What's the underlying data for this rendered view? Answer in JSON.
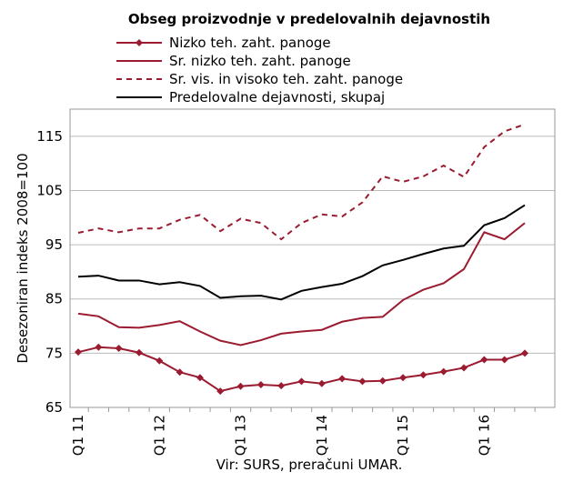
{
  "chart_data": {
    "type": "line",
    "title": "Obseg proizvodnje v predelovalnih dejavnostih",
    "y_label": "Desezoniran indeks  2008=100",
    "source": "Vir: SURS, preračuni UMAR.",
    "categories": [
      "Q1 11",
      null,
      null,
      null,
      "Q1 12",
      null,
      null,
      null,
      "Q1 13",
      null,
      null,
      null,
      "Q1 14",
      null,
      null,
      null,
      "Q1 15",
      null,
      null,
      null,
      "Q1 16",
      null,
      null
    ],
    "series": [
      {
        "name": "Nizko teh. zaht. panoge",
        "color": "#9b1b30",
        "dash": "solid",
        "marker": "diamond",
        "values": [
          75.2,
          76.1,
          75.9,
          75.1,
          73.6,
          71.5,
          70.5,
          68.0,
          68.9,
          69.2,
          69.0,
          69.8,
          69.4,
          70.3,
          69.8,
          69.9,
          70.5,
          71.0,
          71.6,
          72.3,
          73.8,
          73.8,
          75.0
        ]
      },
      {
        "name": "Sr. nizko teh. zaht. panoge",
        "color": "#9b1b30",
        "dash": "solid",
        "values": [
          82.3,
          81.8,
          79.8,
          79.7,
          80.2,
          80.9,
          79.0,
          77.3,
          76.5,
          77.4,
          78.6,
          79.0,
          79.3,
          80.8,
          81.5,
          81.7,
          84.8,
          86.7,
          87.9,
          90.5,
          97.3,
          96.0,
          99.0
        ]
      },
      {
        "name": "Sr. vis. in visoko teh. zaht. panoge",
        "color": "#9b1b30",
        "dash": "dashed",
        "values": [
          97.2,
          98.0,
          97.3,
          98.0,
          98.0,
          99.6,
          100.5,
          97.5,
          99.8,
          99.0,
          96.0,
          99.0,
          100.6,
          100.2,
          102.8,
          107.6,
          106.6,
          107.6,
          109.6,
          107.5,
          113.0,
          115.9,
          117.2
        ]
      },
      {
        "name": "Predelovalne dejavnosti, skupaj",
        "color": "#000000",
        "dash": "solid",
        "values": [
          89.1,
          89.3,
          88.4,
          88.4,
          87.7,
          88.1,
          87.4,
          85.2,
          85.5,
          85.6,
          84.9,
          86.5,
          87.2,
          87.8,
          89.2,
          91.2,
          92.2,
          93.3,
          94.3,
          94.8,
          98.6,
          99.9,
          102.3
        ]
      }
    ],
    "ylim": [
      65,
      120
    ],
    "yticks": [
      65,
      75,
      85,
      95,
      105,
      115
    ],
    "grid": true
  }
}
